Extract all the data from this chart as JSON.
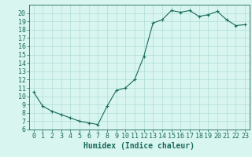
{
  "x": [
    0,
    1,
    2,
    3,
    4,
    5,
    6,
    7,
    8,
    9,
    10,
    11,
    12,
    13,
    14,
    15,
    16,
    17,
    18,
    19,
    20,
    21,
    22,
    23
  ],
  "y": [
    10.5,
    8.8,
    8.2,
    7.8,
    7.4,
    7.0,
    6.8,
    6.6,
    8.8,
    10.7,
    11.0,
    12.0,
    14.8,
    18.8,
    19.2,
    20.3,
    20.1,
    20.3,
    19.6,
    19.8,
    20.2,
    19.2,
    18.5,
    18.6
  ],
  "line_color": "#1a6b5a",
  "marker": "+",
  "marker_size": 3,
  "bg_color": "#d8f5f0",
  "grid_color": "#b0ddd8",
  "xlabel": "Humidex (Indice chaleur)",
  "xlim": [
    -0.5,
    23.5
  ],
  "ylim": [
    6,
    21
  ],
  "yticks": [
    6,
    7,
    8,
    9,
    10,
    11,
    12,
    13,
    14,
    15,
    16,
    17,
    18,
    19,
    20
  ],
  "xticks": [
    0,
    1,
    2,
    3,
    4,
    5,
    6,
    7,
    8,
    9,
    10,
    11,
    12,
    13,
    14,
    15,
    16,
    17,
    18,
    19,
    20,
    21,
    22,
    23
  ],
  "tick_color": "#1a6b5a",
  "axis_color": "#1a6b5a",
  "tick_fontsize": 6,
  "xlabel_fontsize": 7,
  "line_width": 0.8
}
